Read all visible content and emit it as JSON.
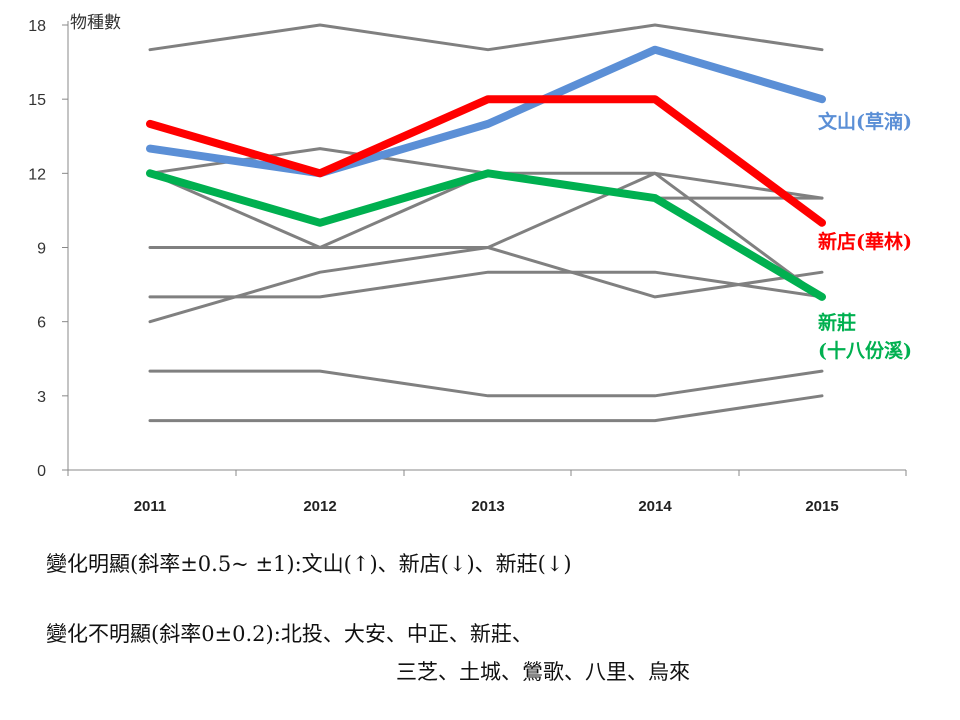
{
  "chart_data": {
    "type": "line",
    "ylabel": "物種數",
    "xlabel": "",
    "categories": [
      "2011",
      "2012",
      "2013",
      "2014",
      "2015"
    ],
    "ylim": [
      0,
      18
    ],
    "yticks": [
      "0",
      "3",
      "6",
      "9",
      "12",
      "15",
      "18"
    ],
    "grid": false,
    "series": [
      {
        "values": [
          17,
          18,
          17,
          18,
          17
        ],
        "color": "#808080",
        "highlight": false
      },
      {
        "values": [
          12,
          13,
          12,
          12,
          11
        ],
        "color": "#808080",
        "highlight": false
      },
      {
        "values": [
          12,
          9,
          12,
          11,
          11
        ],
        "color": "#808080",
        "highlight": false
      },
      {
        "values": [
          9,
          9,
          9,
          12,
          7
        ],
        "color": "#808080",
        "highlight": false
      },
      {
        "values": [
          6,
          8,
          9,
          7,
          8
        ],
        "color": "#808080",
        "highlight": false
      },
      {
        "values": [
          7,
          7,
          8,
          8,
          7
        ],
        "color": "#808080",
        "highlight": false
      },
      {
        "values": [
          4,
          4,
          3,
          3,
          4
        ],
        "color": "#808080",
        "highlight": false
      },
      {
        "values": [
          2,
          2,
          2,
          2,
          3
        ],
        "color": "#808080",
        "highlight": false
      },
      {
        "name": "文山(草湳)",
        "values": [
          13,
          12,
          14,
          17,
          15
        ],
        "color": "#5b8fd6",
        "highlight": true
      },
      {
        "name": "新店(華林)",
        "values": [
          14,
          12,
          15,
          15,
          10
        ],
        "color": "#ff0000",
        "highlight": true
      },
      {
        "name": "新莊\n(十八份溪)",
        "values": [
          12,
          10,
          12,
          11,
          7
        ],
        "color": "#00b050",
        "highlight": true
      }
    ]
  },
  "notes": {
    "line1": "變化明顯(斜率±0.5~ ±1):文山(↑)、新店(↓)、新莊(↓)",
    "line2": "變化不明顯(斜率0±0.2):北投、大安、中正、新莊、",
    "line3": "三芝、土城、鶯歌、八里、烏來"
  }
}
